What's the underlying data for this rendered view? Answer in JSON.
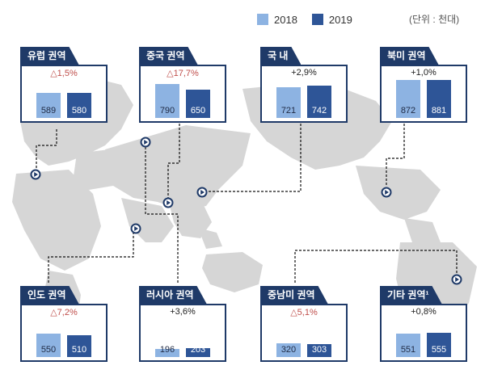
{
  "legend": {
    "y2018": "2018",
    "y2019": "2019",
    "color2018": "#8db3e2",
    "color2019": "#2e5597"
  },
  "unit": "(단위 : 천대)",
  "chart_data": {
    "type": "bar",
    "categories": [
      "2018",
      "2019"
    ],
    "regions": [
      {
        "name": "유럽 권역",
        "change": "△1,5%",
        "direction": "down",
        "values": [
          589,
          580
        ]
      },
      {
        "name": "중국 권역",
        "change": "△17,7%",
        "direction": "down",
        "values": [
          790,
          650
        ]
      },
      {
        "name": "국 내",
        "change": "+2,9%",
        "direction": "up",
        "values": [
          721,
          742
        ]
      },
      {
        "name": "북미 권역",
        "change": "+1,0%",
        "direction": "up",
        "values": [
          872,
          881
        ]
      },
      {
        "name": "인도 권역",
        "change": "△7,2%",
        "direction": "down",
        "values": [
          550,
          510
        ]
      },
      {
        "name": "러시아 권역",
        "change": "+3,6%",
        "direction": "up",
        "values": [
          196,
          203
        ]
      },
      {
        "name": "중남미 권역",
        "change": "△5,1%",
        "direction": "down",
        "values": [
          320,
          303
        ]
      },
      {
        "name": "기타 권역¹",
        "change": "+0,8%",
        "direction": "up",
        "values": [
          551,
          555
        ]
      }
    ]
  }
}
